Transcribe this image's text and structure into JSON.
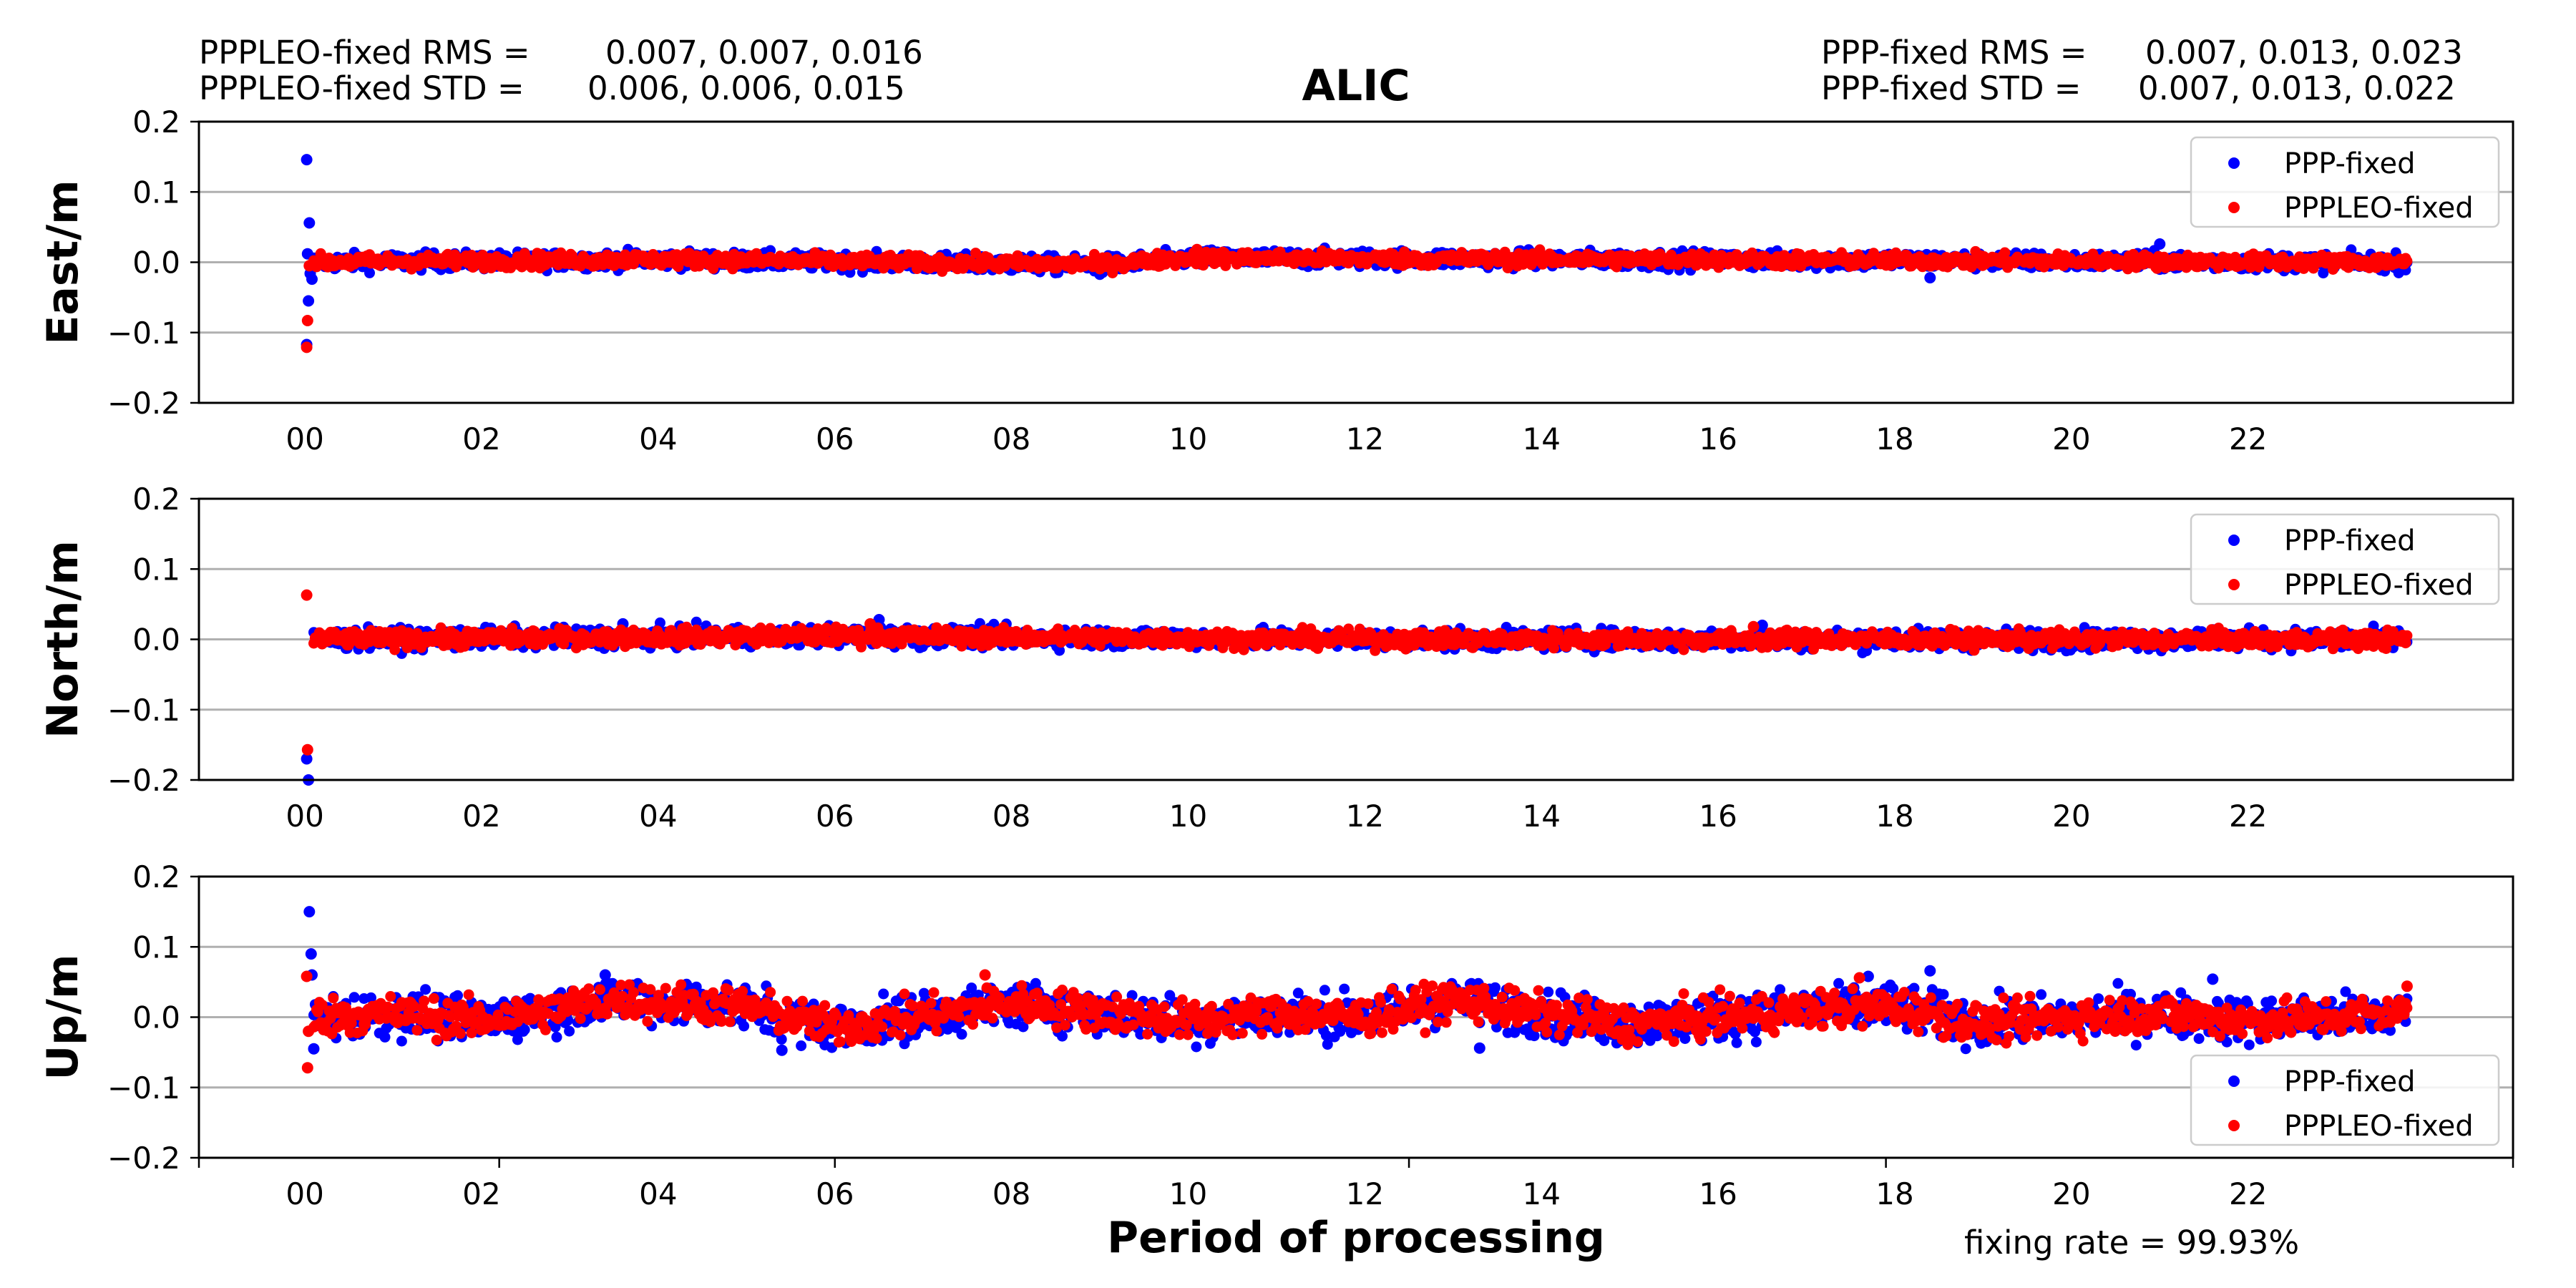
{
  "title": "ALIC",
  "stats": {
    "leo_rms_label": "PPPLEO-fixed RMS =",
    "leo_rms_values": "0.007, 0.007, 0.016",
    "leo_std_label": "PPPLEO-fixed STD =",
    "leo_std_values": "0.006, 0.006, 0.015",
    "ppp_rms_label": "PPP-fixed RMS =",
    "ppp_rms_values": "0.007, 0.013, 0.023",
    "ppp_std_label": "PPP-fixed STD =",
    "ppp_std_values": "0.007, 0.013, 0.022"
  },
  "xlabel": "Period of processing",
  "fixing_rate": "fixing rate =  99.93%",
  "colors": {
    "ppp": "#0000ff",
    "leo": "#ff0000",
    "grid": "#b0b0b0"
  },
  "chart_data": {
    "type": "scatter",
    "x_unit": "hour of day",
    "xlim": [
      -1.2,
      25
    ],
    "x_tick_values": [
      0,
      2,
      4,
      6,
      8,
      10,
      12,
      14,
      16,
      18,
      20,
      22
    ],
    "x_tick_labels": [
      "00",
      "02",
      "04",
      "06",
      "08",
      "10",
      "12",
      "14",
      "16",
      "18",
      "20",
      "22"
    ],
    "ylim": [
      -0.2,
      0.2
    ],
    "y_tick_values": [
      0.2,
      0.1,
      0.0,
      -0.1,
      -0.2
    ],
    "y_tick_labels": [
      "0.2",
      "0.1",
      "0.0",
      "−0.1",
      "−0.2"
    ],
    "grid": "horizontal",
    "panels": [
      {
        "ylabel": "East/m",
        "legend_position": "upper right",
        "series": [
          {
            "name": "PPP-fixed",
            "color": "#0000ff",
            "noise": 0.006,
            "trend": [
              [
                0,
                0
              ],
              [
                4,
                0.004
              ],
              [
                9,
                -0.004
              ],
              [
                10,
                0.006
              ],
              [
                24,
                0.0
              ]
            ],
            "outliers": [
              [
                0.02,
                0.146
              ],
              [
                0.05,
                0.056
              ],
              [
                0.03,
                0.012
              ],
              [
                0.06,
                -0.016
              ],
              [
                0.08,
                -0.024
              ],
              [
                0.04,
                -0.055
              ],
              [
                0.02,
                -0.117
              ],
              [
                21.0,
                0.026
              ],
              [
                18.4,
                -0.022
              ],
              [
                9.0,
                -0.017
              ]
            ]
          },
          {
            "name": "PPPLEO-fixed",
            "color": "#ff0000",
            "noise": 0.005,
            "trend": [
              [
                0,
                0
              ],
              [
                4,
                0.004
              ],
              [
                9,
                -0.003
              ],
              [
                10,
                0.006
              ],
              [
                24,
                0.0
              ]
            ],
            "outliers": [
              [
                0.03,
                -0.083
              ],
              [
                0.02,
                -0.121
              ],
              [
                0.05,
                -0.005
              ],
              [
                10.1,
                0.018
              ]
            ]
          }
        ]
      },
      {
        "ylabel": "North/m",
        "legend_position": "upper right",
        "series": [
          {
            "name": "PPP-fixed",
            "color": "#0000ff",
            "noise": 0.007,
            "trend": [
              [
                0,
                0
              ],
              [
                6,
                0.005
              ],
              [
                12,
                0.0
              ],
              [
                24,
                0.0
              ]
            ],
            "outliers": [
              [
                0.02,
                -0.17
              ],
              [
                0.04,
                -0.2
              ],
              [
                6.5,
                0.028
              ],
              [
                3.6,
                0.022
              ],
              [
                16.5,
                0.02
              ]
            ]
          },
          {
            "name": "PPPLEO-fixed",
            "color": "#ff0000",
            "noise": 0.006,
            "trend": [
              [
                0,
                0
              ],
              [
                6,
                0.005
              ],
              [
                12,
                0.0
              ],
              [
                24,
                0.0
              ]
            ],
            "outliers": [
              [
                0.02,
                0.063
              ],
              [
                0.03,
                -0.157
              ],
              [
                6.4,
                0.022
              ],
              [
                16.4,
                0.018
              ]
            ]
          }
        ]
      },
      {
        "ylabel": "Up/m",
        "legend_position": "lower right",
        "series": [
          {
            "name": "PPP-fixed",
            "color": "#0000ff",
            "noise": 0.016,
            "trend": [
              [
                0,
                0
              ],
              [
                1,
                0.005
              ],
              [
                2,
                -0.005
              ],
              [
                3.5,
                0.025
              ],
              [
                5,
                0.015
              ],
              [
                6,
                -0.015
              ],
              [
                8,
                0.02
              ],
              [
                10,
                -0.005
              ],
              [
                11,
                0.005
              ],
              [
                12,
                0.0
              ],
              [
                13,
                0.025
              ],
              [
                14,
                0.005
              ],
              [
                15,
                -0.01
              ],
              [
                16,
                0.0
              ],
              [
                17,
                0.01
              ],
              [
                18,
                0.015
              ],
              [
                19,
                -0.01
              ],
              [
                20,
                0.0
              ],
              [
                21,
                0.005
              ],
              [
                22,
                -0.005
              ],
              [
                23,
                0.0
              ],
              [
                24,
                0.01
              ]
            ],
            "outliers": [
              [
                0.05,
                0.15
              ],
              [
                0.07,
                0.09
              ],
              [
                0.08,
                0.06
              ],
              [
                0.1,
                -0.045
              ],
              [
                3.4,
                0.06
              ],
              [
                18.4,
                0.066
              ],
              [
                17.7,
                0.058
              ],
              [
                21.6,
                0.054
              ],
              [
                13.3,
                -0.044
              ],
              [
                5.4,
                -0.047
              ]
            ]
          },
          {
            "name": "PPPLEO-fixed",
            "color": "#ff0000",
            "noise": 0.013,
            "trend": [
              [
                0,
                0
              ],
              [
                1,
                0.005
              ],
              [
                2,
                -0.005
              ],
              [
                3.5,
                0.025
              ],
              [
                5,
                0.015
              ],
              [
                6,
                -0.015
              ],
              [
                8,
                0.02
              ],
              [
                10,
                -0.005
              ],
              [
                11,
                0.005
              ],
              [
                12,
                0.0
              ],
              [
                13,
                0.025
              ],
              [
                14,
                0.005
              ],
              [
                15,
                -0.01
              ],
              [
                16,
                0.0
              ],
              [
                17,
                0.01
              ],
              [
                18,
                0.015
              ],
              [
                19,
                -0.01
              ],
              [
                20,
                0.0
              ],
              [
                21,
                0.005
              ],
              [
                22,
                -0.005
              ],
              [
                23,
                0.0
              ],
              [
                24,
                0.01
              ]
            ],
            "outliers": [
              [
                0.02,
                0.058
              ],
              [
                0.03,
                -0.072
              ],
              [
                0.04,
                -0.02
              ],
              [
                7.7,
                0.06
              ],
              [
                17.6,
                0.056
              ],
              [
                23.8,
                0.044
              ]
            ]
          }
        ]
      }
    ]
  }
}
